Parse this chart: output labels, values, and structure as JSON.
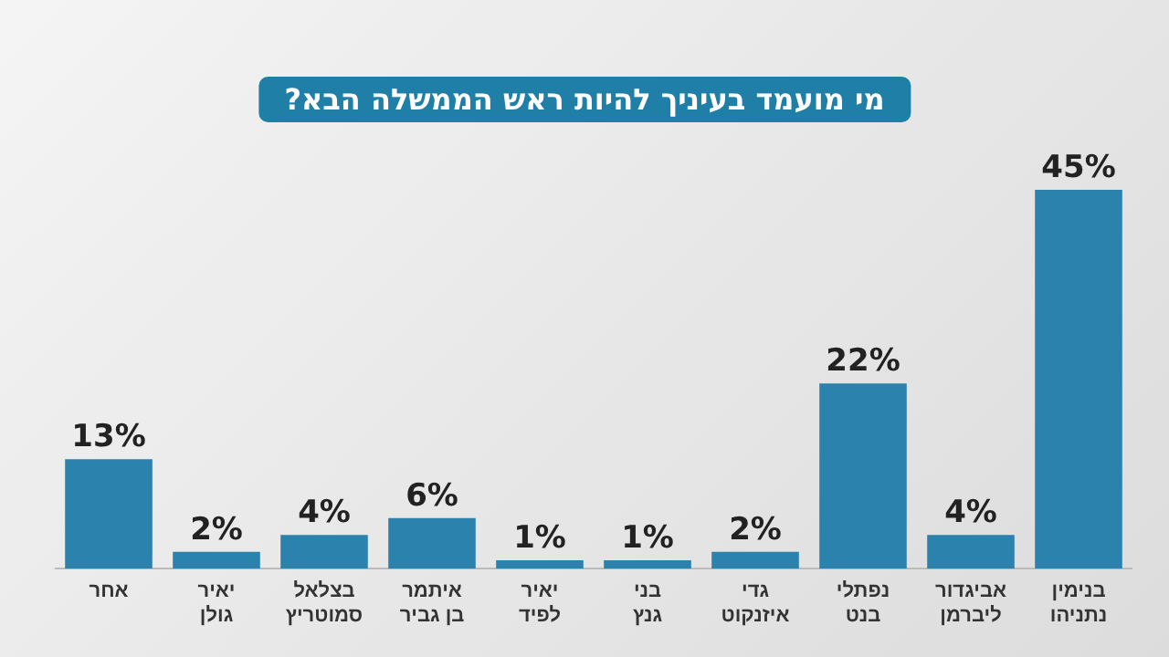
{
  "chart_data": {
    "type": "bar",
    "title": "מי מועמד בעיניך להיות ראש הממשלה הבא?",
    "categories": [
      "אחר",
      "יאיר גולן",
      "בצלאל סמוטריץ",
      "איתמר בן גביר",
      "יאיר לפיד",
      "בני גנץ",
      "גדי איזנקוט",
      "נפתלי בנט",
      "אביגדור ליברמן",
      "בנימין נתניהו"
    ],
    "values": [
      13,
      2,
      4,
      6,
      1,
      1,
      2,
      22,
      4,
      45
    ],
    "value_labels": [
      "13%",
      "2%",
      "4%",
      "6%",
      "1%",
      "1%",
      "2%",
      "22%",
      "4%",
      "45%"
    ],
    "color": "#2a82ad",
    "grid": false,
    "legend": false
  }
}
